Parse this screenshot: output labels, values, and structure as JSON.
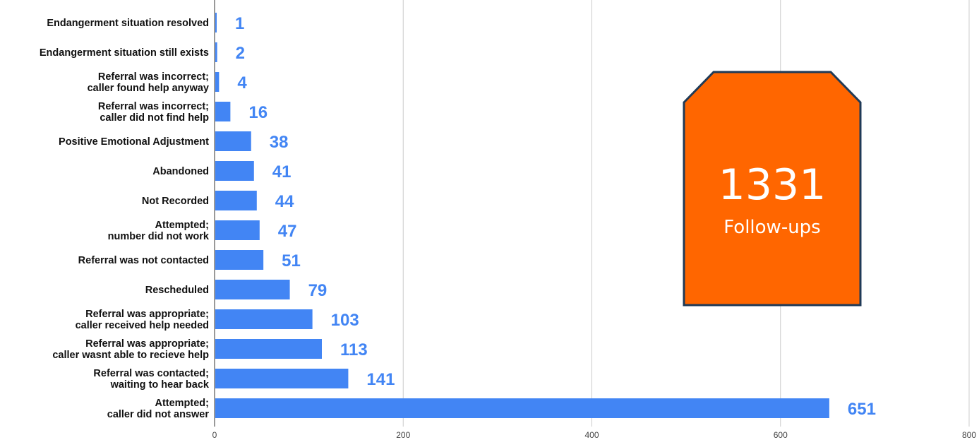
{
  "chart_data": {
    "type": "bar",
    "orientation": "horizontal",
    "categories": [
      [
        "Endangerment situation resolved"
      ],
      [
        "Endangerment situation still exists"
      ],
      [
        "Referral was incorrect;",
        "caller found help anyway"
      ],
      [
        "Referral was incorrect;",
        "caller did not find help"
      ],
      [
        "Positive Emotional Adjustment"
      ],
      [
        "Abandoned"
      ],
      [
        "Not Recorded"
      ],
      [
        "Attempted;",
        "number did not work"
      ],
      [
        "Referral was not contacted"
      ],
      [
        "Rescheduled"
      ],
      [
        "Referral was appropriate;",
        "caller received help needed"
      ],
      [
        "Referral was appropriate;",
        "caller wasnt able to recieve help"
      ],
      [
        "Referral was contacted;",
        "waiting to hear back"
      ],
      [
        "Attempted;",
        "caller did not answer"
      ]
    ],
    "values": [
      1,
      2,
      4,
      16,
      38,
      41,
      44,
      47,
      51,
      79,
      103,
      113,
      141,
      651
    ],
    "xlim": [
      0,
      800
    ],
    "xticks": [
      "0",
      "200",
      "400",
      "600",
      "800"
    ],
    "grid": true,
    "bar_color": "#4285f4",
    "label_color": "#4285f4"
  },
  "callout": {
    "value": "1331",
    "label": "Follow-ups",
    "fill": "#ff6600",
    "border": "#1f3a57"
  }
}
